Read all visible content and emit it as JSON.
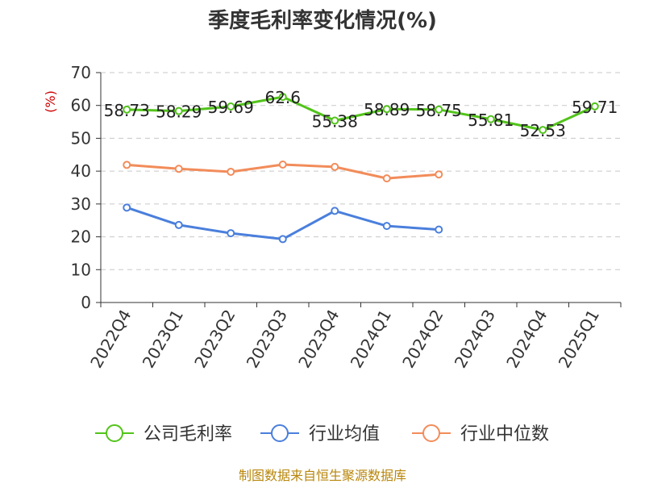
{
  "chart_data": {
    "type": "line",
    "title": "季度毛利率变化情况(%)",
    "ylabel": "(%)",
    "xlabel": "",
    "ylim": [
      0,
      70
    ],
    "yticks": [
      0,
      10,
      20,
      30,
      40,
      50,
      60,
      70
    ],
    "grid": true,
    "legend_position": "bottom",
    "categories": [
      "2022Q4",
      "2023Q1",
      "2023Q2",
      "2023Q3",
      "2023Q4",
      "2024Q1",
      "2024Q2",
      "2024Q3",
      "2024Q4",
      "2025Q1"
    ],
    "series": [
      {
        "name": "公司毛利率",
        "color": "#52c41a",
        "values": [
          58.73,
          58.29,
          59.69,
          62.6,
          55.38,
          58.89,
          58.75,
          55.81,
          52.53,
          59.71
        ],
        "labels": [
          "58.73",
          "58.29",
          "59.69",
          "62.6",
          "55.38",
          "58.89",
          "58.75",
          "55.81",
          "52.53",
          "59.71"
        ]
      },
      {
        "name": "行业均值",
        "color": "#4a7fdc",
        "values": [
          28.9,
          23.6,
          21.1,
          19.3,
          27.9,
          23.3,
          22.2,
          null,
          null,
          null
        ]
      },
      {
        "name": "行业中位数",
        "color": "#f28c5a",
        "values": [
          41.9,
          40.7,
          39.8,
          42.0,
          41.3,
          37.8,
          39.0,
          null,
          null,
          null
        ]
      }
    ]
  },
  "source": "制图数据来自恒生聚源数据库"
}
